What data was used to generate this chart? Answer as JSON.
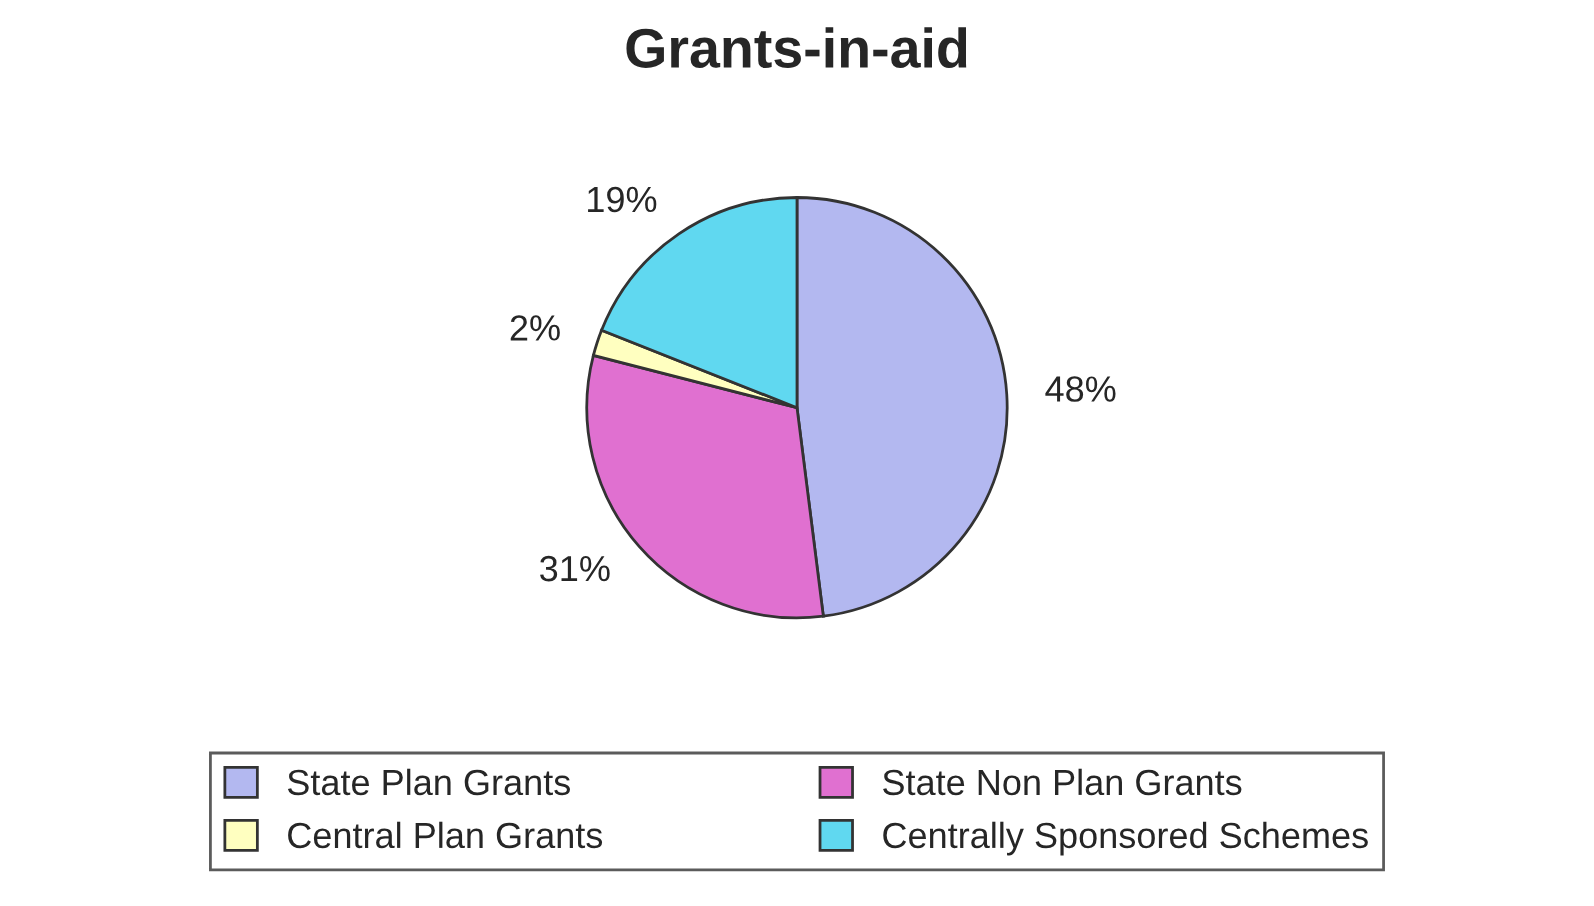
{
  "chart_data": {
    "type": "pie",
    "title": "Grants-in-aid",
    "categories": [
      "State Plan Grants",
      "State Non Plan Grants",
      "Central Plan Grants",
      "Centrally Sponsored Schemes"
    ],
    "values": [
      48,
      31,
      2,
      19
    ],
    "value_labels": [
      "48%",
      "31%",
      "2%",
      "19%"
    ],
    "colors": [
      "#b3b8f0",
      "#e070d0",
      "#ffffc0",
      "#60d8f0"
    ],
    "legend": "bottom"
  }
}
